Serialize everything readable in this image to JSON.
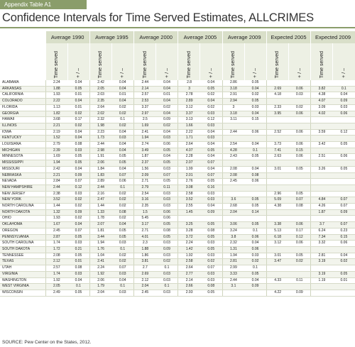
{
  "tag": "Appendix Table A1",
  "title_main": "Confidence Intervals for Time Served Estimates, ",
  "title_bold": "ALL",
  "title_rest": "CRIMES",
  "groups": [
    "Average 1990",
    "Average 1995",
    "Average 2000",
    "Average 2005",
    "Average 2009",
    "Expected 2005",
    "Expected 2009"
  ],
  "sub_ts": "Time served",
  "sub_pm": "+ / –",
  "source": "SOURCE: Pew Center on the States, 2012.",
  "rows": [
    {
      "state": "ALABAMA",
      "v": [
        "2.24",
        "0.04",
        "2.42",
        "0.04",
        "2.44",
        "0.04",
        "2.8",
        "0.04",
        "2.86",
        "0.05",
        "",
        "",
        "",
        ""
      ]
    },
    {
      "state": "ARKANSAS",
      "v": [
        "1.88",
        "0.05",
        "2.05",
        "0.04",
        "2.14",
        "0.04",
        "3",
        "0.05",
        "3.18",
        "0.04",
        "2.69",
        "0.06",
        "3.82",
        "0.1"
      ]
    },
    {
      "state": "CALIFORNIA",
      "v": [
        "1.93",
        "0.01",
        "2.03",
        "0.01",
        "2.57",
        "0.01",
        "2.78",
        "0.02",
        "2.91",
        "0.02",
        "4.18",
        "0.03",
        "4.38",
        "0.04"
      ]
    },
    {
      "state": "COLORADO",
      "v": [
        "2.22",
        "0.04",
        "2.35",
        "0.04",
        "2.53",
        "0.04",
        "2.89",
        "0.04",
        "2.94",
        "0.05",
        "",
        "",
        "4.07",
        "0.09"
      ]
    },
    {
      "state": "FLORIDA",
      "v": [
        "1.13",
        "0.01",
        "2.64",
        "0.02",
        "3.37",
        "0.02",
        "3.12",
        "0.02",
        "3",
        "0.03",
        "2.33",
        "0.02",
        "3.09",
        "0.03"
      ]
    },
    {
      "state": "GEORGIA",
      "v": [
        "1.82",
        "0.02",
        "2.02",
        "0.02",
        "2.97",
        "0.04",
        "3.37",
        "0.03",
        "3.18",
        "0.04",
        "3.95",
        "0.06",
        "4.02",
        "0.06"
      ]
    },
    {
      "state": "HAWAII",
      "v": [
        "3.68",
        "0.17",
        "2.32",
        "0.1",
        "2.5",
        "0.09",
        "3.13",
        "0.12",
        "3.11",
        "0.15",
        "",
        "",
        "",
        ""
      ]
    },
    {
      "state": "ILLINOIS",
      "v": [
        "2.21",
        "0.02",
        "1.98",
        "0.02",
        "1.69",
        "0.02",
        "1.66",
        "0.03",
        "",
        "",
        "",
        "",
        "",
        ""
      ]
    },
    {
      "state": "IOWA",
      "v": [
        "2.19",
        "0.04",
        "2.23",
        "0.04",
        "2.41",
        "0.04",
        "2.22",
        "0.04",
        "2.44",
        "0.06",
        "2.52",
        "0.06",
        "3.59",
        "0.12"
      ]
    },
    {
      "state": "KENTUCKY",
      "v": [
        "1.52",
        "0.04",
        "1.73",
        "0.03",
        "1.94",
        "0.03",
        "1.71",
        "0.03",
        "",
        "",
        "",
        "",
        "",
        ""
      ]
    },
    {
      "state": "LOUISIANA",
      "v": [
        "2.79",
        "0.08",
        "2.44",
        "0.04",
        "2.74",
        "0.06",
        "2.64",
        "0.04",
        "2.54",
        "0.04",
        "3.73",
        "0.06",
        "3.42",
        "0.05"
      ]
    },
    {
      "state": "MICHIGAN",
      "v": [
        "2.39",
        "0.03",
        "2.98",
        "0.04",
        "3.49",
        "0.05",
        "4.07",
        "0.05",
        "4.28",
        "0.1",
        "7.41",
        "0.15",
        "",
        ""
      ]
    },
    {
      "state": "MINNESOTA",
      "v": [
        "1.69",
        "0.05",
        "1.91",
        "0.05",
        "1.87",
        "0.04",
        "2.28",
        "0.04",
        "2.43",
        "0.05",
        "2.63",
        "0.06",
        "2.51",
        "0.06"
      ]
    },
    {
      "state": "MISSISSIPPI",
      "v": [
        "1.94",
        "0.05",
        "2.06",
        "0.05",
        "2.37",
        "0.05",
        "2.07",
        "0.07",
        "",
        "",
        "",
        "",
        "",
        ""
      ]
    },
    {
      "state": "MISSOURI",
      "v": [
        "2.42",
        "0.04",
        "1.84",
        "0.04",
        "1.56",
        "0.03",
        "1.99",
        "0.04",
        "2.08",
        "0.04",
        "3.01",
        "0.05",
        "3.26",
        "0.05"
      ]
    },
    {
      "state": "NEBRASKA",
      "v": [
        "2.21",
        "0.09",
        "1.83",
        "0.07",
        "2.09",
        "0.07",
        "2.01",
        "0.07",
        "2.08",
        "0.08",
        "",
        "",
        "",
        ""
      ]
    },
    {
      "state": "NEVADA",
      "v": [
        "2.84",
        "0.07",
        "2.89",
        "0.06",
        "2.71",
        "0.05",
        "2.76",
        "0.05",
        "2.45",
        "0.06",
        "",
        "",
        "",
        ""
      ]
    },
    {
      "state": "NEW HAMPSHIRE",
      "v": [
        "2.44",
        "0.12",
        "2.44",
        "0.1",
        "2.79",
        "0.11",
        "3.08",
        "0.16",
        "",
        "",
        "",
        "",
        "",
        ""
      ]
    },
    {
      "state": "NEW JERSEY",
      "v": [
        "2.38",
        "0.03",
        "2.16",
        "0.02",
        "2.54",
        "0.03",
        "2.58",
        "0.03",
        "",
        "",
        "2.96",
        "0.05",
        "",
        ""
      ]
    },
    {
      "state": "NEW YORK",
      "v": [
        "3.52",
        "0.02",
        "2.47",
        "0.02",
        "3.16",
        "0.03",
        "3.52",
        "0.03",
        "3.6",
        "0.05",
        "5.09",
        "0.07",
        "4.84",
        "0.07"
      ]
    },
    {
      "state": "NORTH CAROLINA",
      "v": [
        "1.44",
        "0.02",
        "1.44",
        "0.02",
        "2.35",
        "0.03",
        "2.55",
        "0.04",
        "2.68",
        "0.05",
        "4.38",
        "0.08",
        "4.26",
        "0.07"
      ]
    },
    {
      "state": "NORTH DAKOTA",
      "v": [
        "1.32",
        "0.09",
        "1.33",
        "0.08",
        "1.5",
        "0.06",
        "1.45",
        "0.09",
        "2.04",
        "0.14",
        "",
        "",
        "1.87",
        "0.09"
      ]
    },
    {
      "state": "OHIO",
      "v": [
        "1.93",
        "0.02",
        "1.78",
        "0.02",
        "5.45",
        "0.06",
        "",
        "",
        "",
        "",
        "",
        "",
        "",
        ""
      ]
    },
    {
      "state": "OKLAHOMA",
      "v": [
        "1.67",
        "0.04",
        "2.07",
        "0.04",
        "3.17",
        "0.05",
        "3.25",
        "0.05",
        "3.06",
        "0.05",
        "3.38",
        "0.06",
        "3.7",
        "0.07"
      ]
    },
    {
      "state": "OREGON",
      "v": [
        "2.45",
        "0.07",
        "1.81",
        "0.05",
        "2.71",
        "0.08",
        "3.28",
        "0.08",
        "3.24",
        "0.1",
        "5.13",
        "0.17",
        "6.24",
        "0.23"
      ]
    },
    {
      "state": "PENNSYLVANIA",
      "v": [
        "2.87",
        "0.05",
        "3.44",
        "0.05",
        "4.01",
        "0.05",
        "3.72",
        "0.05",
        "3.8",
        "0.06",
        "6.18",
        "0.12",
        "7.34",
        "0.15"
      ]
    },
    {
      "state": "SOUTH CAROLINA",
      "v": [
        "1.74",
        "0.03",
        "1.94",
        "0.03",
        "2.3",
        "0.03",
        "2.24",
        "0.03",
        "2.32",
        "0.04",
        "3.12",
        "0.06",
        "3.32",
        "0.06"
      ]
    },
    {
      "state": "SOUTH DAKOTA",
      "v": [
        "1.72",
        "0.21",
        "1.76",
        "0.1",
        "1.88",
        "0.09",
        "1.42",
        "0.05",
        "1.31",
        "0.06",
        "",
        "",
        "",
        ""
      ]
    },
    {
      "state": "TENNESSEE",
      "v": [
        "2.08",
        "0.05",
        "1.04",
        "0.02",
        "1.86",
        "0.03",
        "1.92",
        "0.03",
        "1.94",
        "0.03",
        "3.01",
        "0.05",
        "2.81",
        "0.04"
      ]
    },
    {
      "state": "TEXAS",
      "v": [
        "2.12",
        "0.01",
        "2.41",
        "0.02",
        "3.81",
        "0.02",
        "2.58",
        "0.02",
        "2.81",
        "0.02",
        "3.47",
        "0.02",
        "3.19",
        "0.02"
      ]
    },
    {
      "state": "UTAH",
      "v": [
        "2.57",
        "0.08",
        "2.24",
        "0.07",
        "2.7",
        "0.1",
        "2.64",
        "0.07",
        "2.99",
        "0.1",
        "",
        "",
        "",
        ""
      ]
    },
    {
      "state": "VIRGINIA",
      "v": [
        "1.74",
        "0.03",
        "1.92",
        "0.03",
        "2.69",
        "0.03",
        "2.77",
        "0.03",
        "3.33",
        "0.05",
        "",
        "",
        "3.19",
        "0.05"
      ]
    },
    {
      "state": "WASHINGTON",
      "v": [
        "1.92",
        "0.04",
        "2.06",
        "0.04",
        "2.12",
        "0.03",
        "2.14",
        "0.03",
        "2.44",
        "0.04",
        "4.33",
        "0.11",
        "1.19",
        "0.01"
      ]
    },
    {
      "state": "WEST VIRGINIA",
      "v": [
        "2.05",
        "0.1",
        "1.79",
        "0.1",
        "2.04",
        "0.1",
        "2.66",
        "0.08",
        "3.1",
        "0.09",
        "",
        "",
        "",
        ""
      ]
    },
    {
      "state": "WISCONSIN",
      "v": [
        "2.49",
        "0.05",
        "2.04",
        "0.03",
        "2.45",
        "0.03",
        "2.93",
        "0.05",
        "",
        "",
        "4.22",
        "0.09",
        "",
        ""
      ]
    }
  ]
}
